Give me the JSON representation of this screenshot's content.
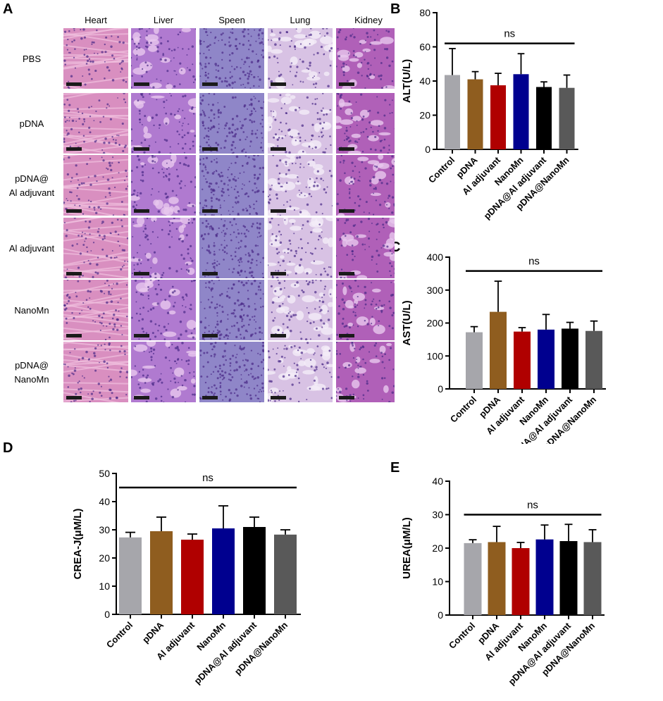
{
  "panel_labels": {
    "a": "A",
    "b": "B",
    "c": "C",
    "d": "D",
    "e": "E"
  },
  "histology": {
    "columns": [
      "Heart",
      "Liver",
      "Speen",
      "Lung",
      "Kidney"
    ],
    "rows": [
      [
        "PBS"
      ],
      [
        "pDNA"
      ],
      [
        "pDNA@",
        "Al adjuvant"
      ],
      [
        "Al adjuvant"
      ],
      [
        "NanoMn"
      ],
      [
        "pDNA@",
        "NanoMn"
      ]
    ],
    "tissue_colors": {
      "heart": "#d98fc0",
      "liver": "#b07ad0",
      "speen": "#8f86c8",
      "lung": "#d8c2e4",
      "kidney": "#b060b8"
    }
  },
  "bar_colors": [
    "#a6a6ab",
    "#8f5d1f",
    "#b00000",
    "#00008f",
    "#000000",
    "#595959"
  ],
  "chart_data": [
    {
      "panel": "B",
      "type": "bar",
      "categories": [
        "Control",
        "pDNA",
        "Al adjuvant",
        "NanoMn",
        "pDNA@Al adjuvant",
        "pDNA@NanoMn"
      ],
      "values": [
        43.5,
        41,
        37.5,
        44,
        36.5,
        36
      ],
      "errors": [
        15.5,
        4.5,
        7,
        12,
        3,
        7.5
      ],
      "ylabel": "ALT(U/L)",
      "ylim": [
        0,
        80
      ],
      "yticks": [
        0,
        20,
        40,
        60,
        80
      ],
      "annotation": "ns",
      "grid": false
    },
    {
      "panel": "C",
      "type": "bar",
      "categories": [
        "Control",
        "pDNA",
        "Al adjuvant",
        "NanoMn",
        "pDNA@Al adjuvant",
        "pDNA@NanoMn"
      ],
      "values": [
        172,
        234,
        174,
        180,
        183,
        176
      ],
      "errors": [
        17,
        93,
        12,
        46,
        19,
        30
      ],
      "ylabel": "AST(U/L)",
      "ylim": [
        0,
        400
      ],
      "yticks": [
        0,
        100,
        200,
        300,
        400
      ],
      "annotation": "ns",
      "grid": false
    },
    {
      "panel": "D",
      "type": "bar",
      "categories": [
        "Control",
        "pDNA",
        "Al adjuvant",
        "NanoMn",
        "pDNA@Al adjuvant",
        "pDNA@NanoMn"
      ],
      "values": [
        27.3,
        29.5,
        26.5,
        30.5,
        31,
        28.3
      ],
      "errors": [
        1.8,
        5,
        2,
        8,
        3.5,
        1.7
      ],
      "ylabel": "CREA-J(μM/L)",
      "ylim": [
        0,
        50
      ],
      "yticks": [
        0,
        10,
        20,
        30,
        40,
        50
      ],
      "annotation": "ns",
      "grid": false
    },
    {
      "panel": "E",
      "type": "bar",
      "categories": [
        "Control",
        "pDNA",
        "Al adjuvant",
        "NanoMn",
        "pDNA@Al adjuvant",
        "pDNA@NanoMn"
      ],
      "values": [
        21.5,
        21.8,
        20,
        22.6,
        22.1,
        21.8
      ],
      "errors": [
        1,
        4.7,
        1.7,
        4.3,
        5,
        3.7
      ],
      "ylabel": "UREA(μM/L)",
      "ylim": [
        0,
        40
      ],
      "yticks": [
        0,
        10,
        20,
        30,
        40
      ],
      "annotation": "ns",
      "grid": false
    }
  ]
}
